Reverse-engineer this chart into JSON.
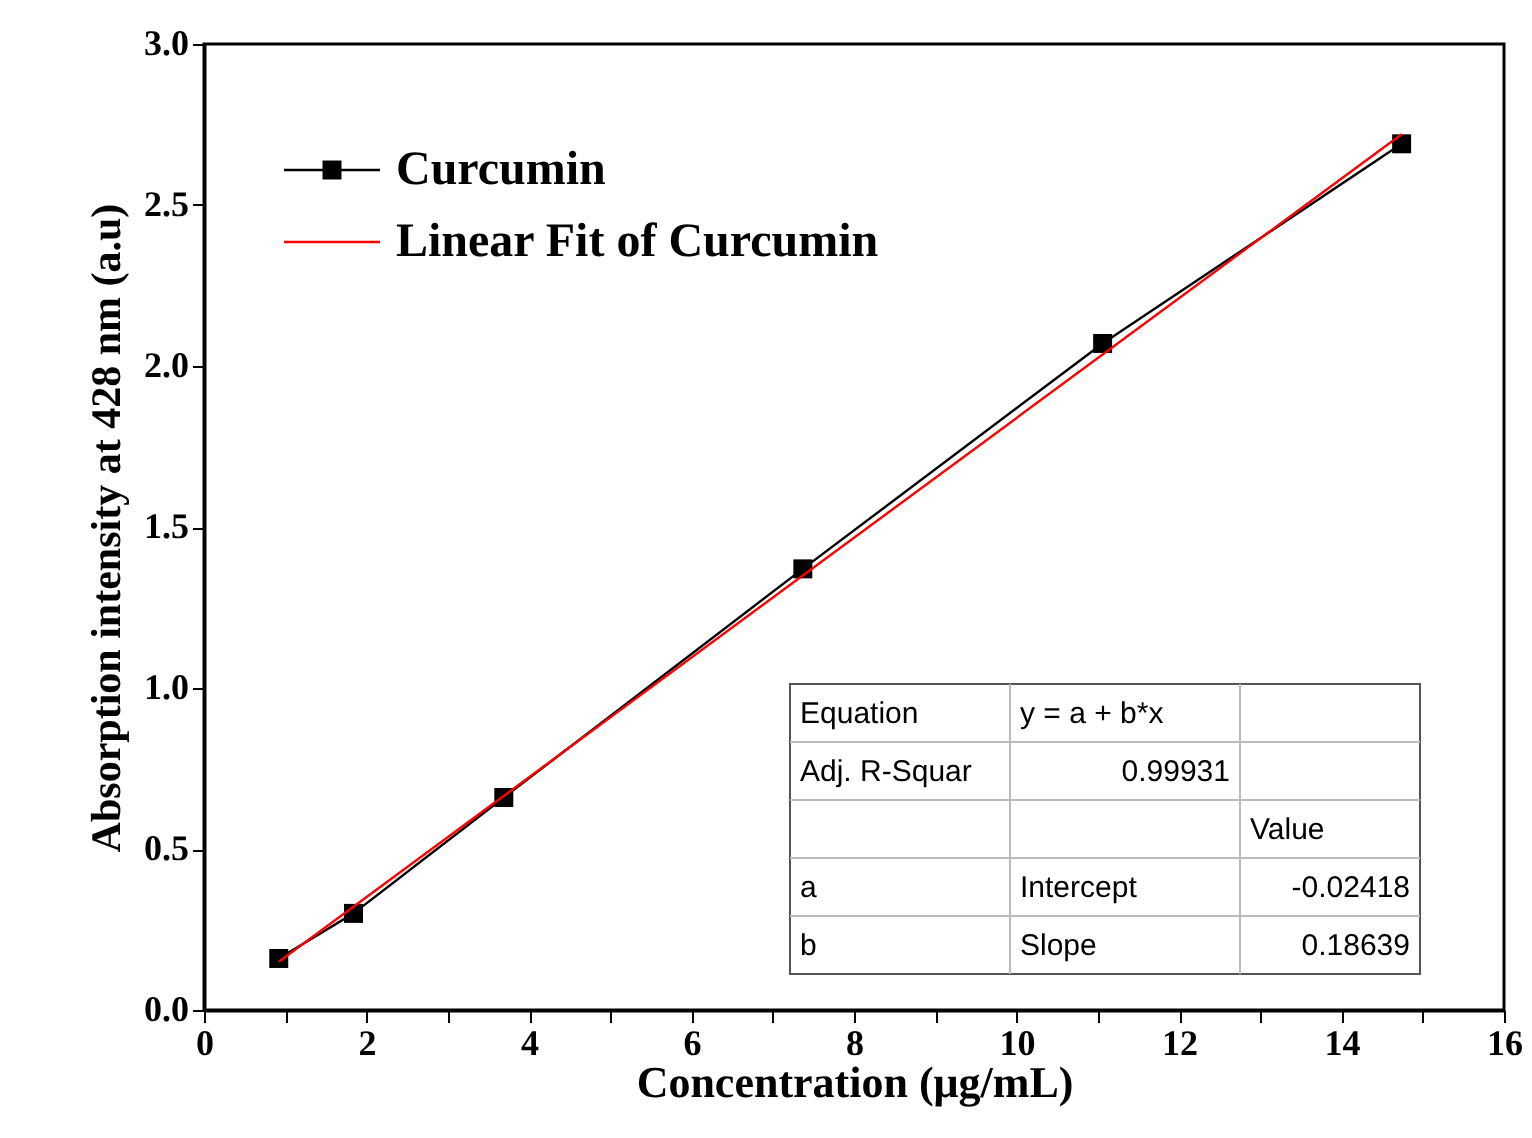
{
  "chart_data": {
    "type": "line",
    "xlabel": "Concentration (μg/mL)",
    "ylabel": "Absorption intensity at 428 nm (a.u)",
    "xlim": [
      0,
      16
    ],
    "xticks": [
      0,
      {
        "value": 1,
        "label": null
      },
      2,
      {
        "value": 3,
        "label": null
      },
      4,
      {
        "value": 5,
        "label": null
      },
      6,
      {
        "value": 7,
        "label": null
      },
      8,
      {
        "value": 9,
        "label": null
      },
      10,
      {
        "value": 11,
        "label": null
      },
      12,
      {
        "value": 13,
        "label": null
      },
      14,
      {
        "value": 15,
        "label": null
      },
      16
    ],
    "ylim": [
      0,
      3
    ],
    "yticks": [
      {
        "value": 0,
        "label": "0.0"
      },
      0.5,
      {
        "value": 1,
        "label": "1.0"
      },
      1.5,
      {
        "value": 2,
        "label": "2.0"
      },
      2.5,
      {
        "value": 3,
        "label": "3.0"
      }
    ],
    "x": [
      0.92,
      1.84,
      3.69,
      7.37,
      11.06,
      14.74
    ],
    "series": [
      {
        "name": "Curcumin",
        "marker": "square",
        "color": "#000000",
        "values": [
          0.16,
          0.3,
          0.66,
          1.37,
          2.07,
          2.69
        ]
      },
      {
        "name": "Linear Fit of Curcumin",
        "marker": "none",
        "color": "#ff0000",
        "x": [
          0.92,
          14.74
        ],
        "values": [
          0.15,
          2.72
        ]
      }
    ],
    "legend": "top left",
    "grid": false,
    "annotations": [
      "Equation",
      "y = a + b*x",
      "Adj. R-Squar",
      "0.99931",
      "Value",
      "a",
      "Intercept",
      "-0.02418",
      "b",
      "Slope",
      "0.18639"
    ]
  }
}
